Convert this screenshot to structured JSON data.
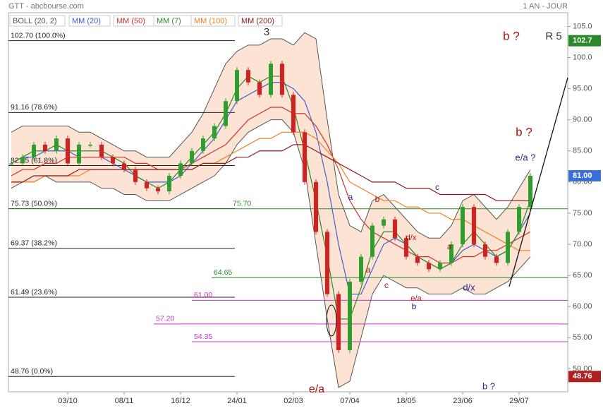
{
  "header": {
    "title": "GTT - abcbourse.com",
    "period": "1 AN - JOUR"
  },
  "chart_data": {
    "type": "candlestick",
    "categories": [
      null,
      null,
      null,
      null,
      null,
      "03/10",
      null,
      null,
      null,
      null,
      "08/11",
      null,
      null,
      null,
      null,
      "16/12",
      null,
      null,
      null,
      null,
      "24/01",
      null,
      null,
      null,
      null,
      "02/03",
      null,
      null,
      null,
      null,
      "07/04",
      null,
      null,
      null,
      null,
      "18/05",
      null,
      null,
      null,
      null,
      "23/06",
      null,
      null,
      null,
      null,
      "29/07",
      null
    ],
    "values": [
      83,
      84,
      86,
      85,
      87,
      83,
      86,
      86,
      84,
      83,
      82,
      80,
      79,
      78.5,
      81,
      83,
      85,
      87,
      89,
      93,
      98,
      96,
      94,
      99,
      94,
      88,
      80,
      72,
      62,
      53,
      64,
      68,
      73,
      74,
      71,
      68,
      67,
      66,
      67,
      70,
      76,
      70,
      68,
      67,
      72,
      76,
      81
    ],
    "up_color": "#2e9e2e",
    "down_color": "#d62020",
    "bollinger": {
      "name": "BOLL (20, 2)",
      "color": "#555555",
      "fill": "#fde3d3",
      "upper": [
        88,
        89,
        89,
        89,
        89,
        89,
        88,
        88,
        87,
        86,
        85,
        85,
        84,
        84,
        84,
        86,
        88,
        91,
        95,
        99,
        101,
        102,
        102,
        103,
        103,
        102,
        104,
        103,
        90,
        78,
        73,
        72,
        77,
        78,
        76,
        74,
        72,
        71,
        71,
        73,
        77,
        78,
        76,
        74,
        76,
        79,
        82
      ],
      "lower": [
        79,
        80,
        80,
        81,
        80,
        80,
        80,
        80,
        79,
        79,
        78,
        78,
        77,
        77,
        77,
        78,
        79,
        80,
        81,
        83,
        86,
        88,
        89,
        90,
        90,
        88,
        82,
        70,
        58,
        47,
        48,
        55,
        62,
        65,
        64,
        63,
        63,
        62,
        62,
        62,
        63,
        62,
        62,
        63,
        64,
        66,
        68
      ]
    },
    "series": [
      {
        "name": "MM (20)",
        "color": "#3a5fd0",
        "values": [
          83,
          84,
          84,
          85,
          85,
          85,
          84,
          84,
          84,
          83,
          82,
          81,
          80,
          80,
          80,
          81,
          83,
          85,
          87,
          90,
          93,
          94,
          95,
          96,
          96,
          95,
          93,
          88,
          80,
          70,
          62,
          62,
          66,
          70,
          71,
          70,
          68,
          67,
          66,
          67,
          69,
          70,
          69,
          68,
          69,
          72,
          75
        ]
      },
      {
        "name": "MM (50)",
        "color": "#d03030",
        "values": [
          81,
          82,
          82,
          83,
          83,
          84,
          84,
          84,
          84,
          84,
          84,
          83,
          83,
          82,
          82,
          82,
          83,
          84,
          85,
          86,
          88,
          90,
          91,
          92,
          92,
          91,
          91,
          89,
          86,
          82,
          77,
          74,
          72,
          71,
          70,
          69,
          68,
          68,
          67,
          67,
          68,
          68,
          69,
          69,
          70,
          71,
          72
        ]
      },
      {
        "name": "MM (7)",
        "color": "#2a8a2a",
        "values": [
          83,
          84,
          85,
          85,
          86,
          85,
          85,
          85,
          85,
          84,
          83,
          81,
          80,
          79,
          80,
          82,
          84,
          86,
          88,
          91,
          95,
          97,
          96,
          97,
          97,
          92,
          85,
          77,
          68,
          58,
          58,
          63,
          69,
          72,
          72,
          70,
          68,
          67,
          66,
          67,
          70,
          72,
          70,
          68,
          69,
          72,
          77
        ]
      },
      {
        "name": "MM (100)",
        "color": "#f08020",
        "values": [
          80,
          80,
          80,
          81,
          81,
          81,
          81,
          82,
          82,
          82,
          82,
          82,
          82,
          82,
          82,
          82,
          82,
          83,
          83,
          84,
          85,
          86,
          87,
          87,
          88,
          88,
          88,
          87,
          85,
          83,
          80,
          79,
          78,
          77,
          77,
          76,
          76,
          75,
          75,
          74,
          74,
          73,
          72,
          71,
          70,
          69,
          69
        ]
      },
      {
        "name": "MM (200)",
        "color": "#8b1a1a",
        "values": [
          80,
          80,
          81,
          81,
          81,
          81,
          82,
          82,
          82,
          82,
          82,
          82,
          82,
          82,
          82,
          82,
          82,
          83,
          83,
          83,
          84,
          84,
          85,
          85,
          85,
          86,
          86,
          85,
          84,
          83,
          82,
          81,
          80,
          80,
          80,
          79,
          79,
          79,
          78,
          78,
          78,
          78,
          78,
          77,
          77,
          77,
          77
        ]
      }
    ],
    "ylim": [
      46.3,
      107.2
    ],
    "yticks": [
      {
        "value": 50,
        "label": "50.00"
      },
      {
        "value": 55,
        "label": "55.00"
      },
      {
        "value": 60,
        "label": "60.00"
      },
      {
        "value": 65,
        "label": "65.00"
      },
      {
        "value": 70,
        "label": "70.00"
      },
      {
        "value": 75,
        "label": "75.00"
      },
      {
        "value": 80,
        "label": "80.00"
      },
      {
        "value": 85,
        "label": "85.00"
      },
      {
        "value": 90,
        "label": "90.00"
      },
      {
        "value": 95,
        "label": "95.00"
      },
      {
        "value": 100,
        "label": "100.0"
      },
      {
        "value": 105,
        "label": "105.0"
      }
    ],
    "fibonacci_levels": {
      "color": "#222222",
      "levels": [
        {
          "value": 102.7,
          "label": "102.70 (100.0%)"
        },
        {
          "value": 91.16,
          "label": "91.16 (78.6%)"
        },
        {
          "value": 82.65,
          "label": "82.65 (61.8%)"
        },
        {
          "value": 75.73,
          "label": "75.73 (50.0%)"
        },
        {
          "value": 69.37,
          "label": "69.37 (38.2%)"
        },
        {
          "value": 61.49,
          "label": "61.49 (23.6%)"
        },
        {
          "value": 48.76,
          "label": "48.76 (0.0%)"
        }
      ]
    },
    "support_levels": {
      "color": "#2a8a2a",
      "levels": [
        {
          "value": 75.7,
          "label": "75.70"
        },
        {
          "value": 64.65,
          "label": "64.65"
        }
      ]
    },
    "target_levels": {
      "color": "#cc33cc",
      "levels": [
        {
          "value": 61,
          "label": "61.00"
        },
        {
          "value": 57.2,
          "label": "57.20"
        },
        {
          "value": 54.35,
          "label": "54.35"
        }
      ]
    },
    "price_tags": [
      {
        "value": 102.7,
        "label": "102.7",
        "color": "#2a8a2a"
      },
      {
        "value": 81,
        "label": "81.00",
        "color": "#3a6fd8"
      },
      {
        "value": 48.76,
        "label": "48.76",
        "color": "#b02020"
      }
    ],
    "annotations": [
      {
        "text": "3",
        "color": "#333333"
      },
      {
        "text": "b ?",
        "color": "#b01010"
      },
      {
        "text": "R 5",
        "color": "#333333"
      },
      {
        "text": "b ?",
        "color": "#b01010"
      },
      {
        "text": "e/a ?",
        "color": "#2a2a80"
      },
      {
        "text": "c",
        "color": "#2a2a80"
      },
      {
        "text": "a",
        "color": "#2a2a80"
      },
      {
        "text": "b",
        "color": "#b01010"
      },
      {
        "text": "d/x",
        "color": "#b01010"
      },
      {
        "text": "a",
        "color": "#b01010"
      },
      {
        "text": "a",
        "color": "#b01010"
      },
      {
        "text": "c",
        "color": "#b01010"
      },
      {
        "text": "e/a",
        "color": "#b01010"
      },
      {
        "text": "b",
        "color": "#2a2a80"
      },
      {
        "text": "d/x",
        "color": "#2a2a80"
      },
      {
        "text": "b ?",
        "color": "#2a2a80"
      },
      {
        "text": "e/a",
        "color": "#b01010"
      }
    ]
  }
}
